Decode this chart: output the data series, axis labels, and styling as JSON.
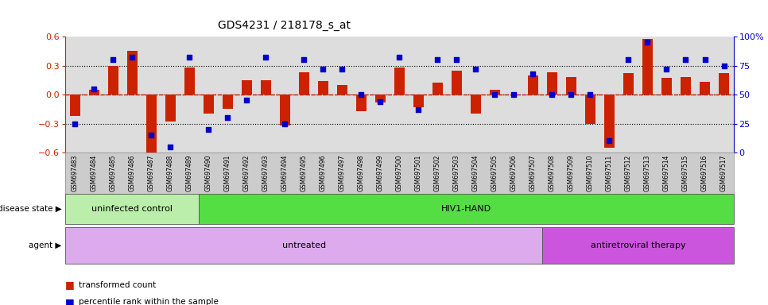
{
  "title": "GDS4231 / 218178_s_at",
  "samples": [
    "GSM697483",
    "GSM697484",
    "GSM697485",
    "GSM697486",
    "GSM697487",
    "GSM697488",
    "GSM697489",
    "GSM697490",
    "GSM697491",
    "GSM697492",
    "GSM697493",
    "GSM697494",
    "GSM697495",
    "GSM697496",
    "GSM697497",
    "GSM697498",
    "GSM697499",
    "GSM697500",
    "GSM697501",
    "GSM697502",
    "GSM697503",
    "GSM697504",
    "GSM697505",
    "GSM697506",
    "GSM697507",
    "GSM697508",
    "GSM697509",
    "GSM697510",
    "GSM697511",
    "GSM697512",
    "GSM697513",
    "GSM697514",
    "GSM697515",
    "GSM697516",
    "GSM697517"
  ],
  "bar_values": [
    -0.22,
    0.05,
    0.3,
    0.45,
    -0.6,
    -0.28,
    0.28,
    -0.2,
    -0.15,
    0.15,
    0.15,
    -0.32,
    0.23,
    0.14,
    0.1,
    -0.17,
    -0.08,
    0.28,
    -0.13,
    0.12,
    0.25,
    -0.2,
    0.05,
    0.0,
    0.2,
    0.23,
    0.18,
    -0.3,
    -0.55,
    0.22,
    0.58,
    0.17,
    0.18,
    0.13,
    0.22
  ],
  "dot_values_pct": [
    25,
    55,
    80,
    82,
    15,
    5,
    82,
    20,
    30,
    45,
    82,
    25,
    80,
    72,
    72,
    50,
    44,
    82,
    37,
    80,
    80,
    72,
    50,
    50,
    68,
    50,
    50,
    50,
    10,
    80,
    95,
    72,
    80,
    80,
    75
  ],
  "ylim_left": [
    -0.6,
    0.6
  ],
  "ylim_right": [
    0,
    100
  ],
  "bar_color": "#CC2200",
  "dot_color": "#0000CC",
  "zero_line_color": "#CC2200",
  "disease_state_groups": [
    {
      "label": "uninfected control",
      "start": 0,
      "end": 7,
      "color": "#BBEEAA"
    },
    {
      "label": "HIV1-HAND",
      "start": 7,
      "end": 35,
      "color": "#55DD44"
    }
  ],
  "agent_groups": [
    {
      "label": "untreated",
      "start": 0,
      "end": 25,
      "color": "#DDAAEE"
    },
    {
      "label": "antiretroviral therapy",
      "start": 25,
      "end": 35,
      "color": "#CC55DD"
    }
  ],
  "legend_items": [
    {
      "label": "transformed count",
      "color": "#CC2200"
    },
    {
      "label": "percentile rank within the sample",
      "color": "#0000CC"
    }
  ],
  "bg_color": "#FFFFFF",
  "plot_bg_color": "#DDDDDD",
  "xtick_bg_color": "#CCCCCC"
}
